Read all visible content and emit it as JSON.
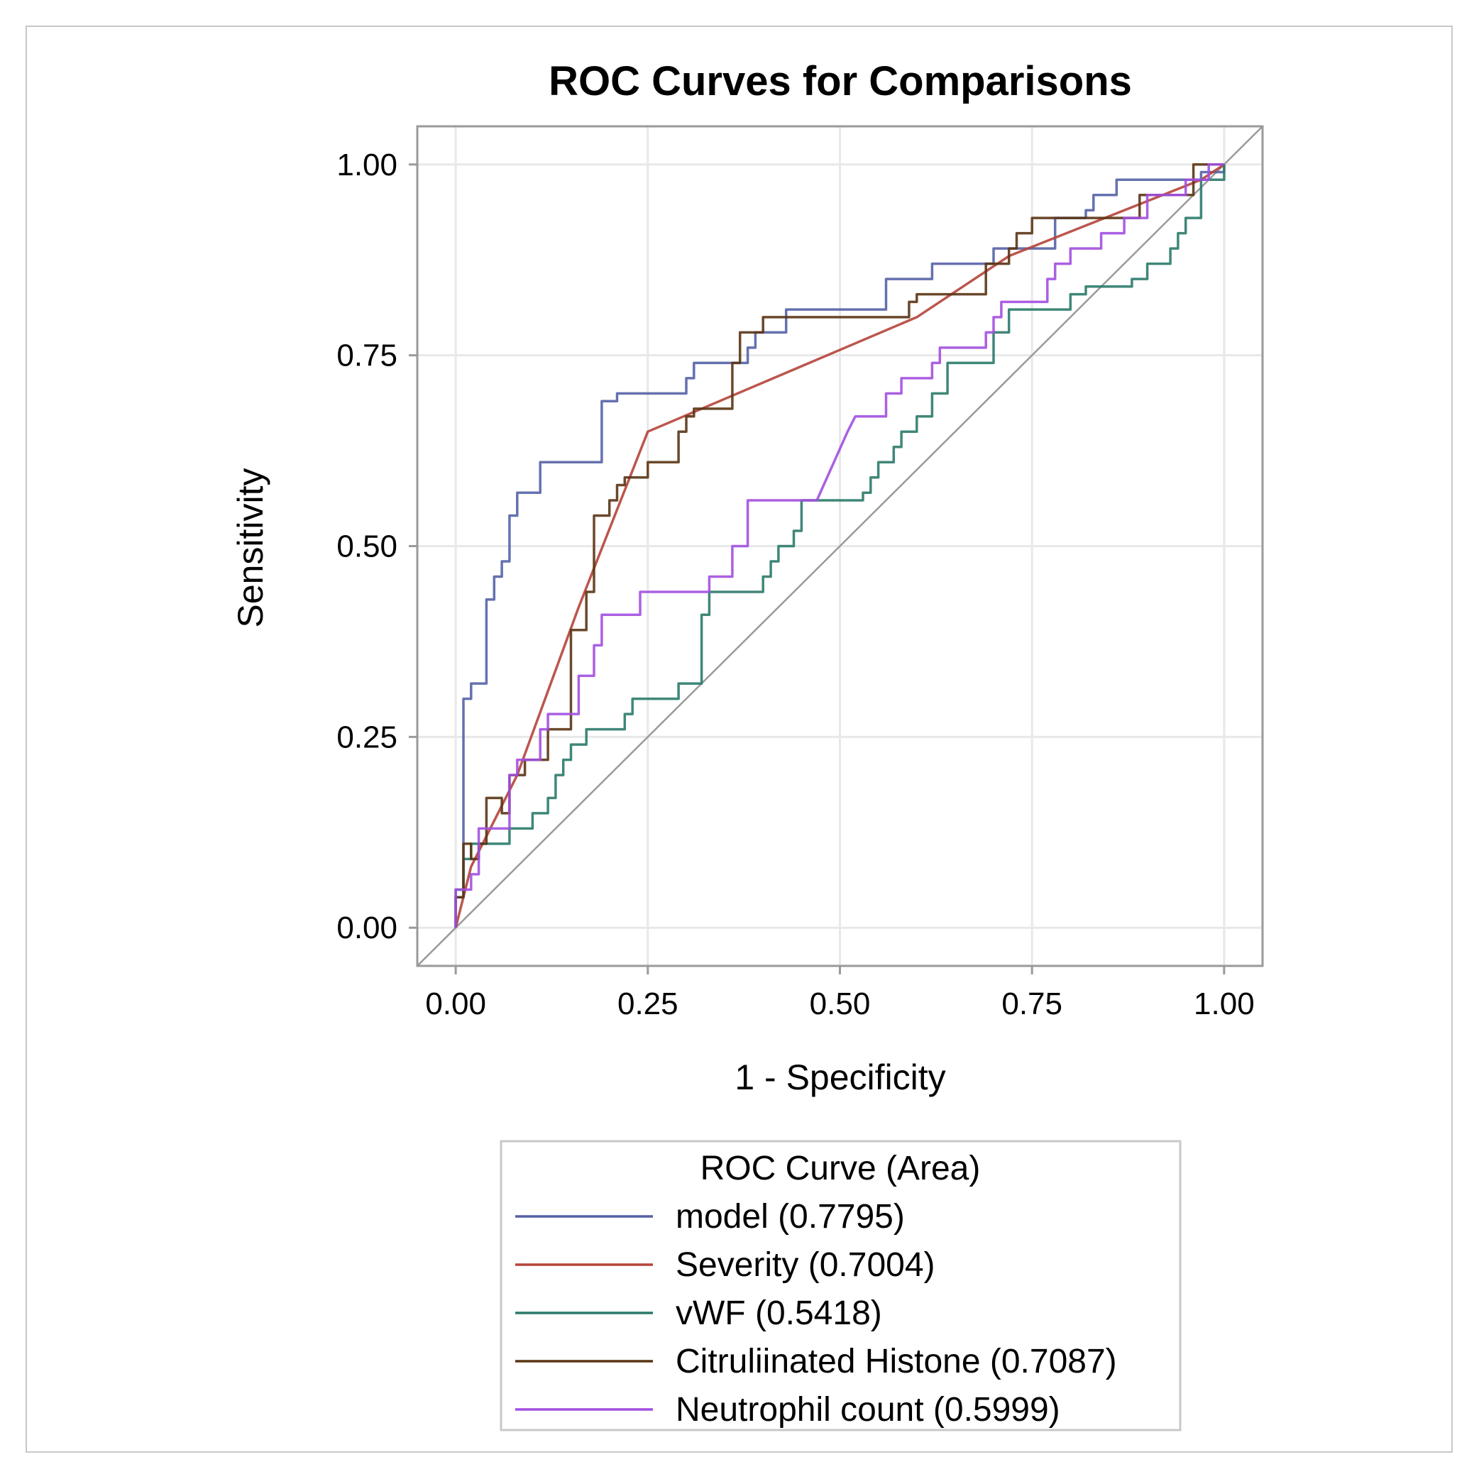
{
  "chart_data": {
    "type": "line",
    "title": "ROC Curves for Comparisons",
    "xlabel": "1 - Specificity",
    "ylabel": "Sensitivity",
    "xlim": [
      -0.05,
      1.05
    ],
    "ylim": [
      -0.05,
      1.05
    ],
    "xticks": [
      "0.00",
      "0.25",
      "0.50",
      "0.75",
      "1.00"
    ],
    "yticks": [
      "0.00",
      "0.25",
      "0.50",
      "0.75",
      "1.00"
    ],
    "grid": true,
    "legend": {
      "title": "ROC Curve (Area)",
      "position": "bottom",
      "entries": [
        {
          "label": "model",
          "area": "(0.7795)"
        },
        {
          "label": "Severity",
          "area": "(0.7004)"
        },
        {
          "label": "vWF",
          "area": "(0.5418)"
        },
        {
          "label": "Citruliinated Histone",
          "area": "(0.7087)"
        },
        {
          "label": "Neutrophil count",
          "area": "(0.5999)"
        }
      ]
    },
    "reference_line": {
      "x": [
        0,
        1
      ],
      "y": [
        0,
        1
      ],
      "color": "#9a9a9a"
    },
    "series": [
      {
        "name": "model",
        "area": 0.7795,
        "color": "#5462a6",
        "points": [
          [
            0,
            0
          ],
          [
            0,
            0.04
          ],
          [
            0.01,
            0.04
          ],
          [
            0.01,
            0.3
          ],
          [
            0.02,
            0.3
          ],
          [
            0.02,
            0.32
          ],
          [
            0.04,
            0.32
          ],
          [
            0.04,
            0.43
          ],
          [
            0.05,
            0.43
          ],
          [
            0.05,
            0.46
          ],
          [
            0.06,
            0.46
          ],
          [
            0.06,
            0.48
          ],
          [
            0.07,
            0.48
          ],
          [
            0.07,
            0.54
          ],
          [
            0.08,
            0.54
          ],
          [
            0.08,
            0.57
          ],
          [
            0.11,
            0.57
          ],
          [
            0.11,
            0.61
          ],
          [
            0.19,
            0.61
          ],
          [
            0.19,
            0.69
          ],
          [
            0.21,
            0.69
          ],
          [
            0.21,
            0.7
          ],
          [
            0.3,
            0.7
          ],
          [
            0.3,
            0.72
          ],
          [
            0.31,
            0.72
          ],
          [
            0.31,
            0.74
          ],
          [
            0.38,
            0.74
          ],
          [
            0.38,
            0.76
          ],
          [
            0.39,
            0.76
          ],
          [
            0.39,
            0.78
          ],
          [
            0.43,
            0.78
          ],
          [
            0.43,
            0.81
          ],
          [
            0.56,
            0.81
          ],
          [
            0.56,
            0.85
          ],
          [
            0.62,
            0.85
          ],
          [
            0.62,
            0.87
          ],
          [
            0.7,
            0.87
          ],
          [
            0.7,
            0.89
          ],
          [
            0.78,
            0.89
          ],
          [
            0.78,
            0.93
          ],
          [
            0.82,
            0.93
          ],
          [
            0.82,
            0.94
          ],
          [
            0.83,
            0.94
          ],
          [
            0.83,
            0.96
          ],
          [
            0.86,
            0.96
          ],
          [
            0.86,
            0.98
          ],
          [
            0.97,
            0.98
          ],
          [
            0.97,
            0.99
          ],
          [
            1,
            0.99
          ],
          [
            1,
            1
          ]
        ]
      },
      {
        "name": "Severity",
        "area": 0.7004,
        "color": "#b5443a",
        "points": [
          [
            0,
            0
          ],
          [
            0.02,
            0.08
          ],
          [
            0.08,
            0.2
          ],
          [
            0.16,
            0.42
          ],
          [
            0.25,
            0.65
          ],
          [
            0.6,
            0.8
          ],
          [
            0.72,
            0.88
          ],
          [
            0.97,
            0.98
          ],
          [
            1,
            1
          ]
        ]
      },
      {
        "name": "vWF",
        "area": 0.5418,
        "color": "#2a7a6a",
        "points": [
          [
            0,
            0
          ],
          [
            0,
            0.05
          ],
          [
            0.01,
            0.05
          ],
          [
            0.01,
            0.09
          ],
          [
            0.02,
            0.09
          ],
          [
            0.02,
            0.11
          ],
          [
            0.07,
            0.11
          ],
          [
            0.07,
            0.13
          ],
          [
            0.1,
            0.13
          ],
          [
            0.1,
            0.15
          ],
          [
            0.12,
            0.15
          ],
          [
            0.12,
            0.17
          ],
          [
            0.13,
            0.17
          ],
          [
            0.13,
            0.2
          ],
          [
            0.14,
            0.2
          ],
          [
            0.14,
            0.22
          ],
          [
            0.15,
            0.22
          ],
          [
            0.15,
            0.24
          ],
          [
            0.17,
            0.24
          ],
          [
            0.17,
            0.26
          ],
          [
            0.22,
            0.26
          ],
          [
            0.22,
            0.28
          ],
          [
            0.23,
            0.28
          ],
          [
            0.23,
            0.3
          ],
          [
            0.29,
            0.3
          ],
          [
            0.29,
            0.32
          ],
          [
            0.32,
            0.32
          ],
          [
            0.32,
            0.41
          ],
          [
            0.33,
            0.41
          ],
          [
            0.33,
            0.44
          ],
          [
            0.4,
            0.44
          ],
          [
            0.4,
            0.46
          ],
          [
            0.41,
            0.46
          ],
          [
            0.41,
            0.48
          ],
          [
            0.42,
            0.48
          ],
          [
            0.42,
            0.5
          ],
          [
            0.44,
            0.5
          ],
          [
            0.44,
            0.52
          ],
          [
            0.45,
            0.52
          ],
          [
            0.45,
            0.56
          ],
          [
            0.53,
            0.56
          ],
          [
            0.53,
            0.57
          ],
          [
            0.54,
            0.57
          ],
          [
            0.54,
            0.59
          ],
          [
            0.55,
            0.59
          ],
          [
            0.55,
            0.61
          ],
          [
            0.57,
            0.61
          ],
          [
            0.57,
            0.63
          ],
          [
            0.58,
            0.63
          ],
          [
            0.58,
            0.65
          ],
          [
            0.6,
            0.65
          ],
          [
            0.6,
            0.67
          ],
          [
            0.62,
            0.67
          ],
          [
            0.62,
            0.7
          ],
          [
            0.64,
            0.7
          ],
          [
            0.64,
            0.74
          ],
          [
            0.7,
            0.74
          ],
          [
            0.7,
            0.78
          ],
          [
            0.72,
            0.78
          ],
          [
            0.72,
            0.81
          ],
          [
            0.8,
            0.81
          ],
          [
            0.8,
            0.83
          ],
          [
            0.82,
            0.83
          ],
          [
            0.82,
            0.84
          ],
          [
            0.88,
            0.84
          ],
          [
            0.88,
            0.85
          ],
          [
            0.9,
            0.85
          ],
          [
            0.9,
            0.87
          ],
          [
            0.93,
            0.87
          ],
          [
            0.93,
            0.89
          ],
          [
            0.94,
            0.89
          ],
          [
            0.94,
            0.91
          ],
          [
            0.95,
            0.91
          ],
          [
            0.95,
            0.93
          ],
          [
            0.97,
            0.93
          ],
          [
            0.97,
            0.98
          ],
          [
            1,
            0.98
          ],
          [
            1,
            1
          ]
        ]
      },
      {
        "name": "Citruliinated Histone",
        "area": 0.7087,
        "color": "#5a3414",
        "points": [
          [
            0,
            0
          ],
          [
            0,
            0.04
          ],
          [
            0.01,
            0.04
          ],
          [
            0.01,
            0.11
          ],
          [
            0.02,
            0.11
          ],
          [
            0.02,
            0.09
          ],
          [
            0.03,
            0.09
          ],
          [
            0.03,
            0.11
          ],
          [
            0.04,
            0.11
          ],
          [
            0.04,
            0.17
          ],
          [
            0.06,
            0.17
          ],
          [
            0.06,
            0.15
          ],
          [
            0.07,
            0.15
          ],
          [
            0.07,
            0.2
          ],
          [
            0.09,
            0.2
          ],
          [
            0.09,
            0.22
          ],
          [
            0.12,
            0.22
          ],
          [
            0.12,
            0.26
          ],
          [
            0.15,
            0.26
          ],
          [
            0.15,
            0.39
          ],
          [
            0.17,
            0.39
          ],
          [
            0.17,
            0.44
          ],
          [
            0.18,
            0.44
          ],
          [
            0.18,
            0.54
          ],
          [
            0.2,
            0.54
          ],
          [
            0.2,
            0.56
          ],
          [
            0.21,
            0.56
          ],
          [
            0.21,
            0.58
          ],
          [
            0.22,
            0.58
          ],
          [
            0.22,
            0.59
          ],
          [
            0.25,
            0.59
          ],
          [
            0.25,
            0.61
          ],
          [
            0.29,
            0.61
          ],
          [
            0.29,
            0.65
          ],
          [
            0.3,
            0.65
          ],
          [
            0.3,
            0.67
          ],
          [
            0.31,
            0.67
          ],
          [
            0.31,
            0.68
          ],
          [
            0.36,
            0.68
          ],
          [
            0.36,
            0.74
          ],
          [
            0.37,
            0.74
          ],
          [
            0.37,
            0.78
          ],
          [
            0.4,
            0.78
          ],
          [
            0.4,
            0.8
          ],
          [
            0.59,
            0.8
          ],
          [
            0.59,
            0.82
          ],
          [
            0.6,
            0.82
          ],
          [
            0.6,
            0.83
          ],
          [
            0.69,
            0.83
          ],
          [
            0.69,
            0.87
          ],
          [
            0.72,
            0.87
          ],
          [
            0.72,
            0.89
          ],
          [
            0.73,
            0.89
          ],
          [
            0.73,
            0.91
          ],
          [
            0.75,
            0.91
          ],
          [
            0.75,
            0.93
          ],
          [
            0.89,
            0.93
          ],
          [
            0.89,
            0.96
          ],
          [
            0.96,
            0.96
          ],
          [
            0.96,
            1
          ],
          [
            1,
            1
          ]
        ]
      },
      {
        "name": "Neutrophil count",
        "area": 0.5999,
        "color": "#a24fe0",
        "points": [
          [
            0,
            0
          ],
          [
            0,
            0.05
          ],
          [
            0.02,
            0.05
          ],
          [
            0.02,
            0.07
          ],
          [
            0.03,
            0.07
          ],
          [
            0.03,
            0.13
          ],
          [
            0.07,
            0.13
          ],
          [
            0.07,
            0.2
          ],
          [
            0.08,
            0.2
          ],
          [
            0.08,
            0.22
          ],
          [
            0.11,
            0.22
          ],
          [
            0.11,
            0.26
          ],
          [
            0.12,
            0.26
          ],
          [
            0.12,
            0.28
          ],
          [
            0.16,
            0.28
          ],
          [
            0.16,
            0.33
          ],
          [
            0.18,
            0.33
          ],
          [
            0.18,
            0.37
          ],
          [
            0.19,
            0.37
          ],
          [
            0.19,
            0.41
          ],
          [
            0.24,
            0.41
          ],
          [
            0.24,
            0.44
          ],
          [
            0.33,
            0.44
          ],
          [
            0.33,
            0.46
          ],
          [
            0.36,
            0.46
          ],
          [
            0.36,
            0.5
          ],
          [
            0.38,
            0.5
          ],
          [
            0.38,
            0.56
          ],
          [
            0.47,
            0.56
          ],
          [
            0.51,
            0.65
          ],
          [
            0.52,
            0.67
          ],
          [
            0.56,
            0.67
          ],
          [
            0.56,
            0.7
          ],
          [
            0.58,
            0.7
          ],
          [
            0.58,
            0.72
          ],
          [
            0.62,
            0.72
          ],
          [
            0.62,
            0.74
          ],
          [
            0.63,
            0.74
          ],
          [
            0.63,
            0.76
          ],
          [
            0.69,
            0.76
          ],
          [
            0.69,
            0.78
          ],
          [
            0.7,
            0.78
          ],
          [
            0.7,
            0.8
          ],
          [
            0.71,
            0.8
          ],
          [
            0.71,
            0.82
          ],
          [
            0.77,
            0.82
          ],
          [
            0.77,
            0.85
          ],
          [
            0.78,
            0.85
          ],
          [
            0.78,
            0.87
          ],
          [
            0.8,
            0.87
          ],
          [
            0.8,
            0.89
          ],
          [
            0.84,
            0.89
          ],
          [
            0.84,
            0.91
          ],
          [
            0.87,
            0.91
          ],
          [
            0.87,
            0.93
          ],
          [
            0.9,
            0.93
          ],
          [
            0.9,
            0.96
          ],
          [
            0.95,
            0.96
          ],
          [
            0.95,
            0.98
          ],
          [
            0.98,
            0.98
          ],
          [
            0.98,
            1
          ],
          [
            1,
            1
          ]
        ]
      }
    ]
  }
}
